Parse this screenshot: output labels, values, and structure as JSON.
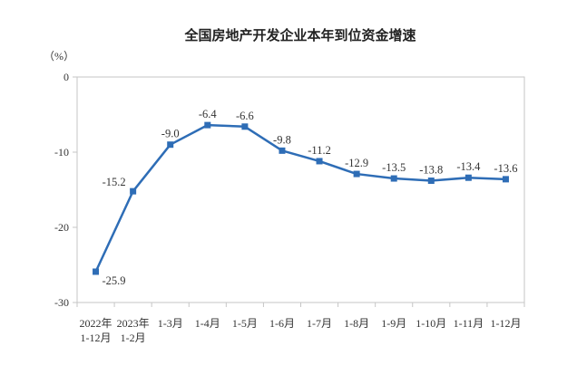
{
  "chart_data": {
    "type": "line",
    "title": "全国房地产开发企业本年到位资金增速",
    "unit_label": "（%）",
    "categories": [
      [
        "2022年",
        "1-12月"
      ],
      [
        "2023年",
        "1-2月"
      ],
      [
        "1-3月"
      ],
      [
        "1-4月"
      ],
      [
        "1-5月"
      ],
      [
        "1-6月"
      ],
      [
        "1-7月"
      ],
      [
        "1-8月"
      ],
      [
        "1-9月"
      ],
      [
        "1-10月"
      ],
      [
        "1-11月"
      ],
      [
        "1-12月"
      ]
    ],
    "values": [
      -25.9,
      -15.2,
      -9.0,
      -6.4,
      -6.6,
      -9.8,
      -11.2,
      -12.9,
      -13.5,
      -13.8,
      -13.4,
      -13.6
    ],
    "point_labels": [
      "-25.9",
      "-15.2",
      "-9.0",
      "-6.4",
      "-6.6",
      "-9.8",
      "-11.2",
      "-12.9",
      "-13.5",
      "-13.8",
      "-13.4",
      "-13.6"
    ],
    "ylim": [
      -30,
      0
    ],
    "yticks": [
      0,
      -10,
      -20,
      -30
    ],
    "ytick_labels": [
      "0",
      "-10",
      "-20",
      "-30"
    ],
    "grid": false,
    "legend": "none",
    "marker": "square",
    "line_color": "#2E6DB6",
    "axis_color": "#C6C6C6",
    "text_color": "#333333"
  }
}
